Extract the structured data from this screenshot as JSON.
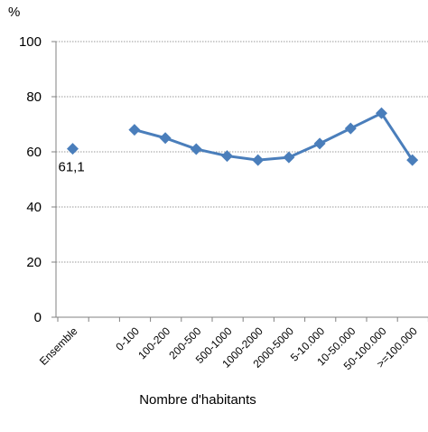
{
  "chart_data": {
    "type": "line",
    "ylabel": "%",
    "xlabel": "Nombre d'habitants",
    "ylim": [
      0,
      100
    ],
    "yticks": [
      0,
      20,
      40,
      60,
      80,
      100
    ],
    "grid": true,
    "categories": [
      "Ensemble",
      "",
      "0-100",
      "100-200",
      "200-500",
      "500-1000",
      "1000-2000",
      "2000-5000",
      "5-10.000",
      "10-50.000",
      "50-100.000",
      ">=100.000"
    ],
    "series": [
      {
        "values": [
          61.1,
          null,
          68,
          65,
          61,
          58.5,
          57,
          58,
          63,
          68.5,
          74,
          57
        ],
        "color": "#4a7ebb"
      }
    ],
    "data_labels": [
      {
        "category_index": 0,
        "text": "61,1"
      }
    ]
  }
}
